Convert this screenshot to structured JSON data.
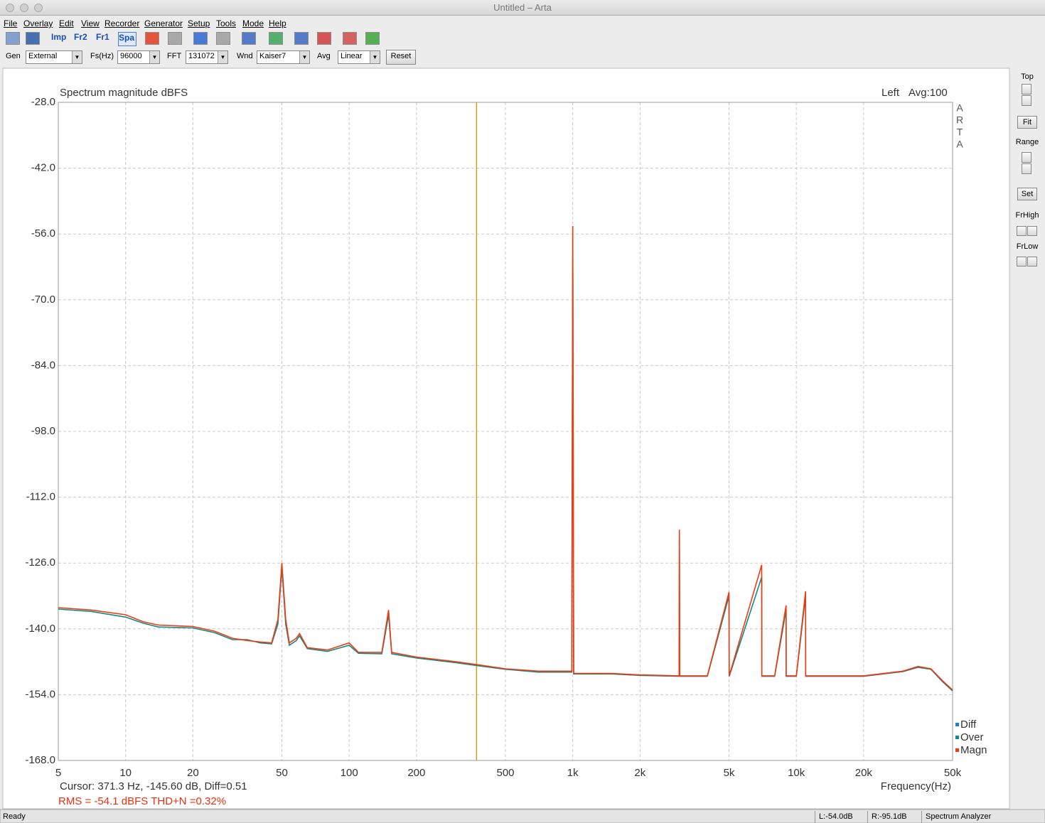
{
  "window": {
    "title": "Untitled – Arta"
  },
  "menu": [
    "File",
    "Overlay",
    "Edit",
    "View",
    "Recorder",
    "Generator",
    "Setup",
    "Tools",
    "Mode",
    "Help"
  ],
  "toolbar": [
    "Imp",
    "Fr2",
    "Fr1",
    "Spa"
  ],
  "params": [
    {
      "label": "Gen",
      "value": "External"
    },
    {
      "label": "Fs(Hz)",
      "value": "96000"
    },
    {
      "label": "FFT",
      "value": "131072"
    },
    {
      "label": "Wnd",
      "value": "Kaiser7"
    },
    {
      "label": "Avg",
      "value": "Linear"
    }
  ],
  "reset": "Reset",
  "chart_data": {
    "type": "line",
    "title": "Spectrum magnitude dBFS",
    "channel": "Left",
    "avg": "Avg:100",
    "brand": [
      "A",
      "R",
      "T",
      "A"
    ],
    "xlabel": "Frequency(Hz)",
    "xscale": "log",
    "grid": true,
    "legend": "lower right",
    "x": [
      5,
      7,
      10,
      12,
      14,
      20,
      25,
      30,
      35,
      40,
      45,
      48,
      50,
      52,
      54,
      58,
      60,
      65,
      80,
      100,
      110,
      140,
      150,
      155,
      200,
      300,
      371,
      500,
      700,
      990,
      1000,
      1010,
      1500,
      2000,
      2990,
      3000,
      3010,
      4000,
      5000,
      5010,
      7000,
      7010,
      8000,
      9000,
      9010,
      10000,
      11000,
      11010,
      15000,
      20000,
      30000,
      35000,
      40000,
      45000,
      50000
    ],
    "series": [
      {
        "name": "Diff",
        "color": "#1e7fd0",
        "values": [
          null,
          null,
          null,
          null,
          null,
          null,
          null,
          null,
          null,
          null,
          null,
          null,
          null,
          null,
          null,
          null,
          null,
          null,
          null,
          null,
          null,
          null,
          null,
          null,
          null,
          null,
          null,
          null,
          null,
          null,
          null,
          null,
          null,
          null,
          null,
          null,
          null,
          null,
          null,
          null,
          null,
          null,
          null,
          null,
          null,
          null,
          null,
          null,
          null,
          null,
          null,
          null,
          null,
          null,
          null
        ]
      },
      {
        "name": "Over",
        "color": "#108a8a",
        "values": [
          -135.8,
          -136.3,
          -137.5,
          -138.8,
          -139.6,
          -139.8,
          -140.8,
          -142.3,
          -142.3,
          -143,
          -143.2,
          -139,
          -127,
          -139,
          -143.5,
          -142.5,
          -141.5,
          -144.2,
          -144.8,
          -143.5,
          -145.2,
          -145.3,
          -137,
          -145.3,
          -146.2,
          -147.2,
          -147.8,
          -148.6,
          -149.2,
          -149.2,
          -61,
          -149.6,
          -149.6,
          -149.9,
          -150.1,
          -121,
          -150.1,
          -150.1,
          -133,
          -150.1,
          -129,
          -150.1,
          -150.1,
          -136,
          -150.1,
          -150.1,
          -133,
          -150.1,
          -150.1,
          -150.1,
          -149.1,
          -148.2,
          -148.6,
          -151.2,
          -153.2
        ]
      },
      {
        "name": "Magn",
        "color": "#f03a10",
        "values": [
          -135.5,
          -136,
          -137,
          -138.5,
          -139.2,
          -139.5,
          -140.5,
          -142,
          -142.5,
          -142.8,
          -143,
          -138,
          -126,
          -138,
          -143,
          -142,
          -141,
          -144,
          -144.5,
          -143,
          -145,
          -145,
          -136,
          -145,
          -146,
          -147,
          -147.6,
          -148.5,
          -149,
          -149,
          -54.3,
          -149.5,
          -149.5,
          -149.8,
          -150,
          -118.9,
          -150,
          -150,
          -132.2,
          -150,
          -126.4,
          -150,
          -150,
          -135,
          -150,
          -150,
          -132,
          -150,
          -150,
          -150,
          -149,
          -148,
          -148.5,
          -151,
          -153
        ]
      }
    ],
    "xlim": [
      5,
      50000
    ],
    "xticks": [
      5,
      10,
      20,
      50,
      100,
      200,
      500,
      {
        "value": 1000,
        "label": "1k"
      },
      {
        "value": 2000,
        "label": "2k"
      },
      {
        "value": 5000,
        "label": "5k"
      },
      {
        "value": 10000,
        "label": "10k"
      },
      {
        "value": 20000,
        "label": "20k"
      },
      {
        "value": 50000,
        "label": "50k"
      }
    ],
    "ylim": [
      -168,
      -28
    ],
    "yticks": [
      {
        "value": -168,
        "label": "-168.0"
      },
      {
        "value": -154,
        "label": "-154.0"
      },
      {
        "value": -140,
        "label": "-140.0"
      },
      {
        "value": -126,
        "label": "-126.0"
      },
      {
        "value": -112,
        "label": "-112.0"
      },
      {
        "value": -98,
        "label": "-98.0"
      },
      {
        "value": -84,
        "label": "-84.0"
      },
      {
        "value": -70,
        "label": "-70.0"
      },
      {
        "value": -56,
        "label": "-56.0"
      },
      {
        "value": -42,
        "label": "-42.0"
      },
      {
        "value": -28,
        "label": "-28.0"
      }
    ],
    "cursor_x": 371.3,
    "cursor_color": "#d4a017",
    "cursor_text": "Cursor:   371.3 Hz, -145.60 dB,  Diff=0.51",
    "summary": "RMS =  -54.1 dBFS   THD+N =0.32%"
  },
  "side_panel": [
    "Top",
    "Fit",
    "Range",
    "Set",
    "FrHigh",
    "FrLow"
  ],
  "status": [
    "Ready",
    "L:-54.0dB",
    "R:-95.1dB",
    "Spectrum Analyzer"
  ]
}
